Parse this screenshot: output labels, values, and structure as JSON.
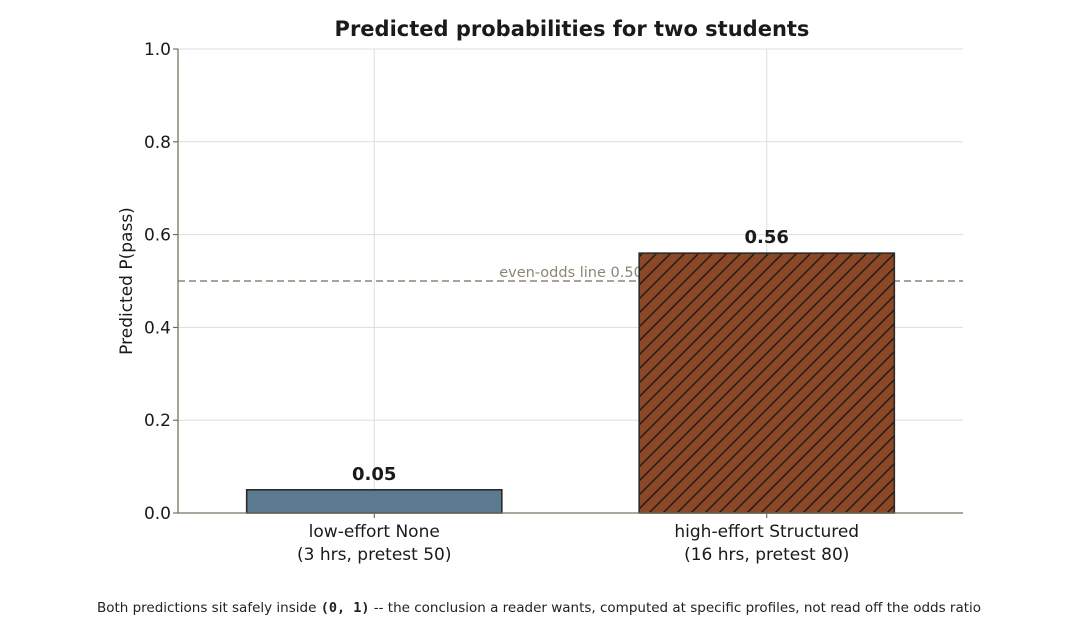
{
  "chart_data": {
    "type": "bar",
    "title": "Predicted probabilities for two students",
    "xlabel": "",
    "ylabel": "Predicted P(pass)",
    "ylim": [
      0,
      1.0
    ],
    "yticks": [
      "0.0",
      "0.2",
      "0.4",
      "0.6",
      "0.8",
      "1.0"
    ],
    "categories": [
      {
        "line1": "low-effort None",
        "line2": "(3 hrs, pretest 50)"
      },
      {
        "line1": "high-effort Structured",
        "line2": "(16 hrs, pretest 80)"
      }
    ],
    "values": [
      0.05,
      0.56
    ],
    "value_labels": [
      "0.05",
      "0.56"
    ],
    "bar_colors": [
      "#5b7a8f",
      "#8b4726"
    ],
    "bar_hatch": [
      false,
      true
    ],
    "reference_line": {
      "value": 0.5,
      "label": "even-odds line 0.50",
      "color": "#8c8574"
    },
    "grid": true
  },
  "caption": {
    "before": "Both predictions sit safely inside ",
    "code": "(0, 1)",
    "after": " -- the conclusion a reader wants, computed at specific profiles, not read off the odds ratio"
  }
}
